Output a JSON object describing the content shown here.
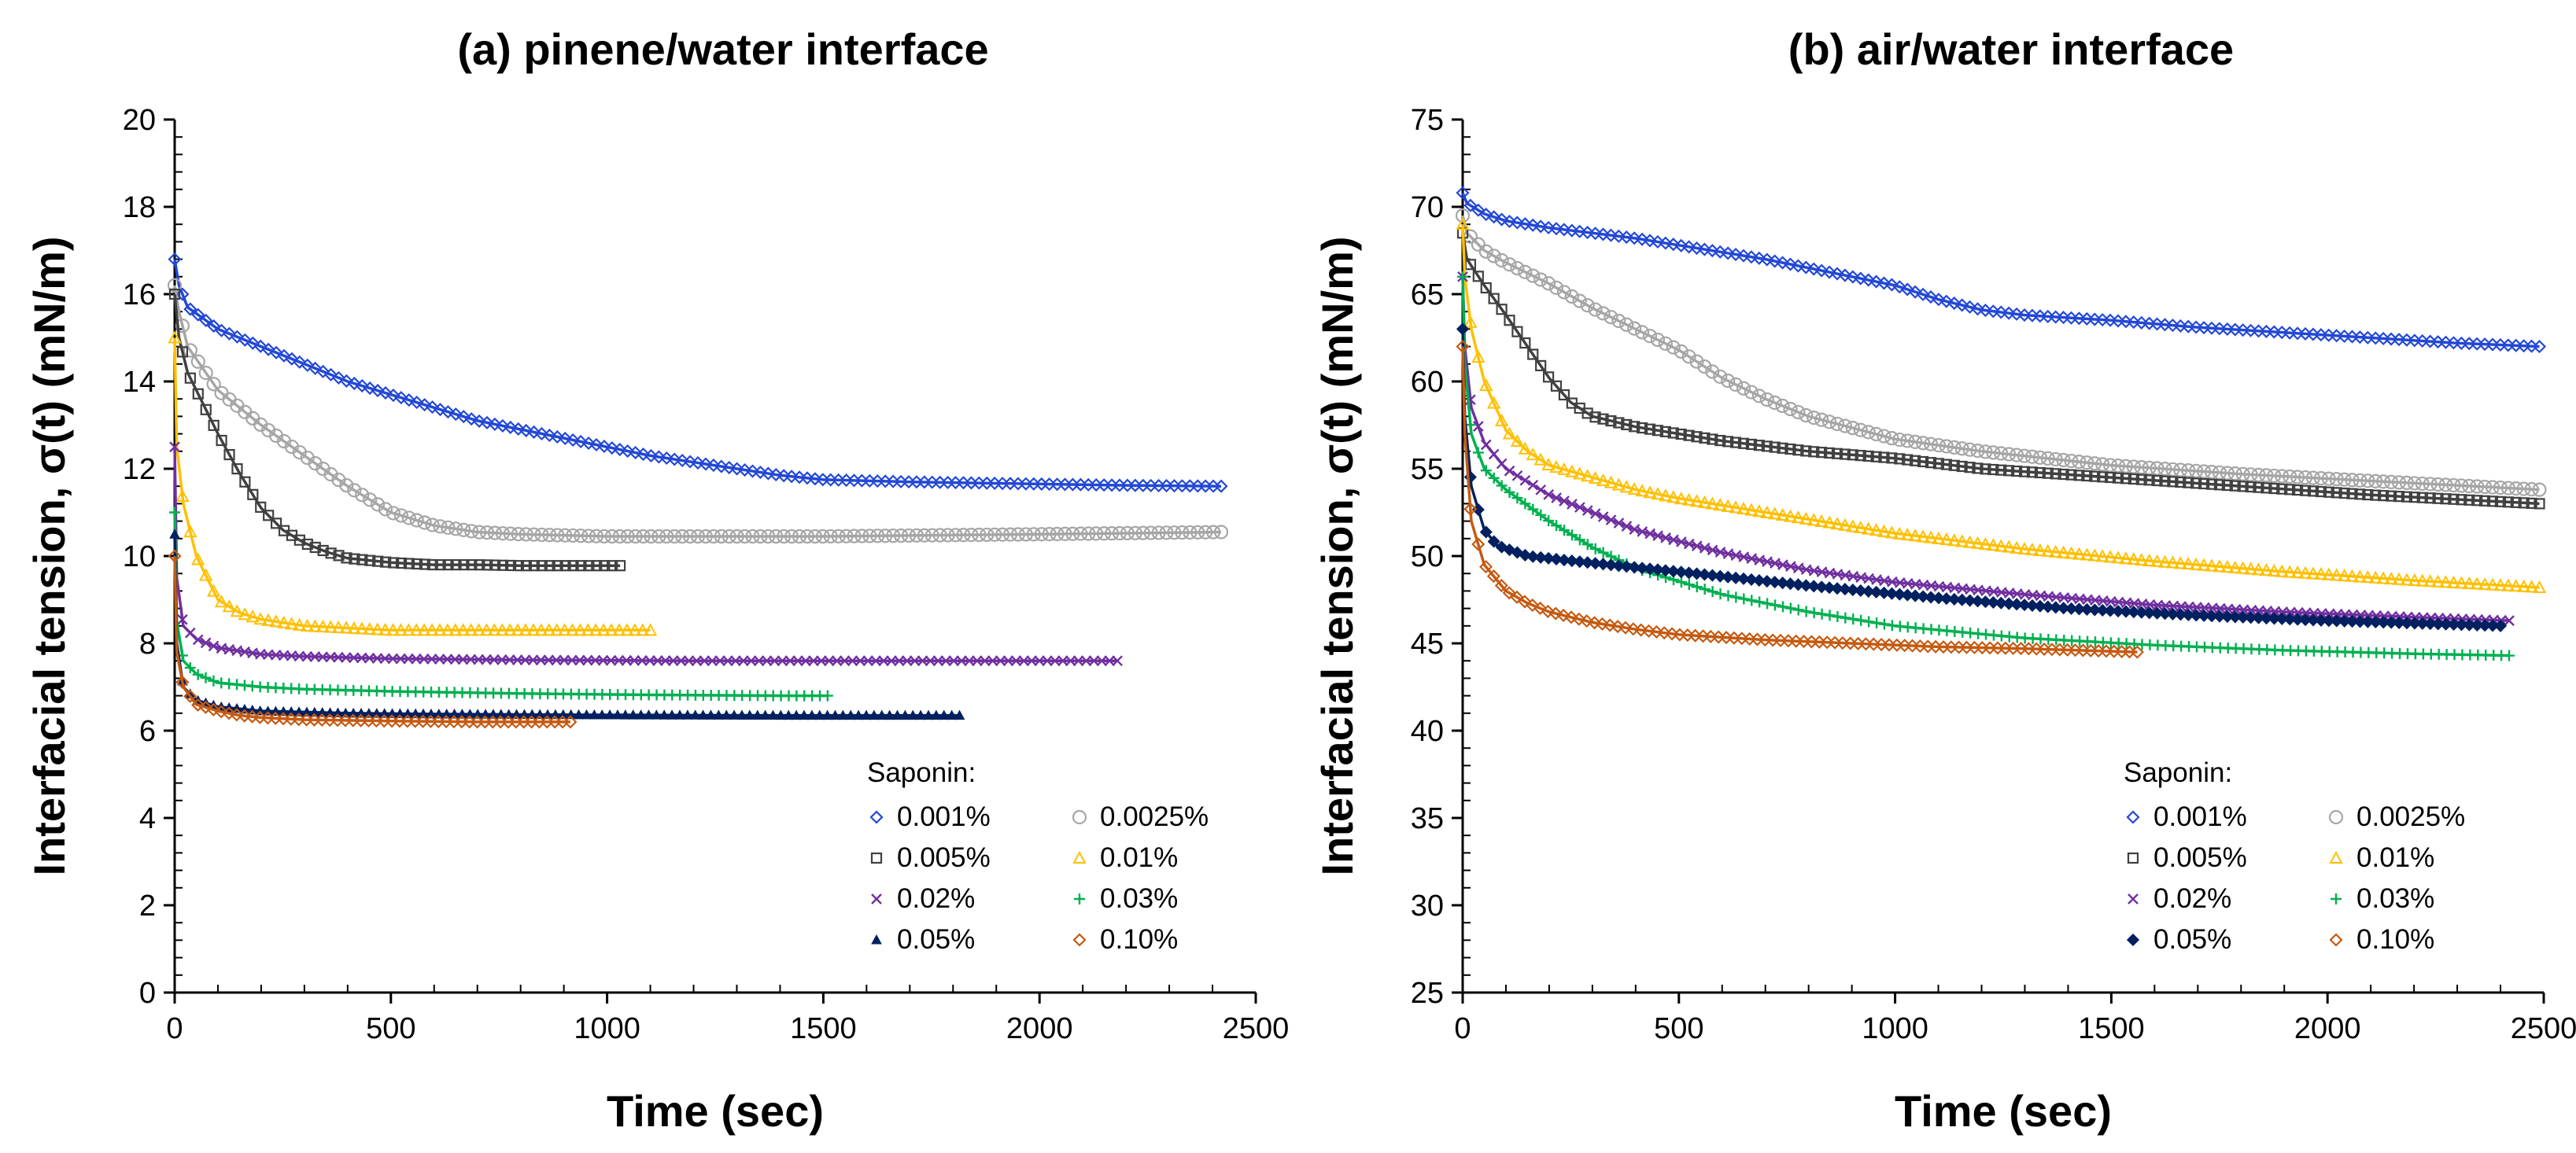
{
  "chart_data": [
    {
      "type": "line",
      "panel": "a",
      "title": "(a) pinene/water interface",
      "xlabel": "Time (sec)",
      "ylabel": "Interfacial tension, σ(t)  (mN/m)",
      "xlim": [
        0,
        2500
      ],
      "ylim": [
        0,
        20
      ],
      "xticks": [
        0,
        500,
        1000,
        1500,
        2000,
        2500
      ],
      "yticks": [
        0,
        2,
        4,
        6,
        8,
        10,
        12,
        14,
        16,
        18,
        20
      ],
      "legend_title": "Saponin:",
      "legend_placement": "bottom-right",
      "series": [
        {
          "name": "0.001%",
          "marker": "diamond-open",
          "color": "#2348d6",
          "x": [
            0,
            10,
            30,
            100,
            200,
            300,
            400,
            500,
            600,
            700,
            800,
            900,
            1000,
            1100,
            1200,
            1300,
            1400,
            1500,
            1700,
            2000,
            2200,
            2420
          ],
          "y": [
            16.8,
            16.2,
            15.7,
            15.2,
            14.8,
            14.4,
            14.0,
            13.7,
            13.4,
            13.1,
            12.9,
            12.7,
            12.5,
            12.3,
            12.15,
            12.0,
            11.85,
            11.75,
            11.7,
            11.65,
            11.62,
            11.6
          ]
        },
        {
          "name": "0.0025%",
          "marker": "circle-open",
          "color": "#a6a6a6",
          "x": [
            0,
            10,
            30,
            100,
            200,
            300,
            400,
            500,
            600,
            700,
            800,
            1000,
            1500,
            2000,
            2420
          ],
          "y": [
            16.2,
            15.6,
            14.8,
            13.8,
            13.0,
            12.3,
            11.6,
            11.0,
            10.7,
            10.55,
            10.5,
            10.45,
            10.45,
            10.5,
            10.55
          ]
        },
        {
          "name": "0.005%",
          "marker": "square-open",
          "color": "#404040",
          "x": [
            0,
            10,
            30,
            100,
            150,
            200,
            250,
            300,
            350,
            400,
            500,
            600,
            700,
            800,
            900,
            1030
          ],
          "y": [
            16.0,
            15.0,
            14.2,
            12.8,
            11.9,
            11.1,
            10.6,
            10.3,
            10.1,
            9.95,
            9.85,
            9.8,
            9.8,
            9.78,
            9.78,
            9.78
          ]
        },
        {
          "name": "0.01%",
          "marker": "triangle-open",
          "color": "#ffc000",
          "x": [
            0,
            5,
            20,
            50,
            100,
            150,
            200,
            300,
            400,
            500,
            700,
            900,
            1100
          ],
          "y": [
            15.0,
            12.5,
            11.2,
            10.0,
            9.0,
            8.7,
            8.55,
            8.4,
            8.35,
            8.3,
            8.3,
            8.3,
            8.3
          ]
        },
        {
          "name": "0.02%",
          "marker": "cross",
          "color": "#7030a0",
          "x": [
            0,
            5,
            20,
            50,
            100,
            200,
            300,
            500,
            800,
            1200,
            1600,
            2000,
            2180
          ],
          "y": [
            12.5,
            9.5,
            8.4,
            8.1,
            7.9,
            7.75,
            7.7,
            7.65,
            7.62,
            7.6,
            7.6,
            7.6,
            7.6
          ]
        },
        {
          "name": "0.03%",
          "marker": "plus",
          "color": "#00b050",
          "x": [
            0,
            5,
            20,
            50,
            100,
            200,
            300,
            500,
            800,
            1100,
            1400,
            1510
          ],
          "y": [
            11.0,
            8.5,
            7.6,
            7.3,
            7.1,
            7.0,
            6.95,
            6.9,
            6.85,
            6.82,
            6.8,
            6.8
          ]
        },
        {
          "name": "0.05%",
          "marker": "triangle-filled",
          "color": "#002060",
          "x": [
            0,
            5,
            20,
            50,
            100,
            200,
            400,
            600,
            1000,
            1400,
            1815
          ],
          "y": [
            10.5,
            8.0,
            7.0,
            6.7,
            6.55,
            6.45,
            6.4,
            6.38,
            6.36,
            6.35,
            6.35
          ]
        },
        {
          "name": "0.10%",
          "marker": "diamond-open",
          "color": "#c55a11",
          "x": [
            0,
            5,
            20,
            50,
            100,
            150,
            200,
            300,
            500,
            700,
            915
          ],
          "y": [
            10.0,
            7.8,
            7.0,
            6.6,
            6.45,
            6.35,
            6.3,
            6.25,
            6.22,
            6.2,
            6.2
          ]
        }
      ]
    },
    {
      "type": "line",
      "panel": "b",
      "title": "(b) air/water interface",
      "xlabel": "Time (sec)",
      "ylabel": "Interfacial tension, σ(t)  (mN/m)",
      "xlim": [
        0,
        2500
      ],
      "ylim": [
        25,
        75
      ],
      "xticks": [
        0,
        500,
        1000,
        1500,
        2000,
        2500
      ],
      "yticks": [
        25,
        30,
        35,
        40,
        45,
        50,
        55,
        60,
        65,
        70,
        75
      ],
      "legend_title": "Saponin:",
      "legend_placement": "bottom-right",
      "series": [
        {
          "name": "0.001%",
          "marker": "diamond-open",
          "color": "#2348d6",
          "x": [
            0,
            10,
            50,
            100,
            200,
            300,
            400,
            500,
            600,
            700,
            800,
            900,
            1000,
            1100,
            1200,
            1300,
            1500,
            1700,
            1900,
            2100,
            2300,
            2490
          ],
          "y": [
            70.8,
            70.2,
            69.6,
            69.2,
            68.8,
            68.5,
            68.2,
            67.8,
            67.4,
            67.0,
            66.5,
            66.0,
            65.5,
            64.7,
            64.1,
            63.8,
            63.5,
            63.1,
            62.8,
            62.5,
            62.2,
            62.0
          ]
        },
        {
          "name": "0.0025%",
          "marker": "circle-open",
          "color": "#a6a6a6",
          "x": [
            0,
            10,
            50,
            100,
            200,
            300,
            400,
            500,
            600,
            700,
            800,
            1000,
            1200,
            1500,
            1800,
            2100,
            2490
          ],
          "y": [
            69.5,
            68.5,
            67.5,
            66.8,
            65.6,
            64.2,
            63.0,
            61.8,
            60.2,
            59.0,
            58.0,
            56.7,
            56.0,
            55.2,
            54.7,
            54.3,
            53.8
          ]
        },
        {
          "name": "0.005%",
          "marker": "square-open",
          "color": "#404040",
          "x": [
            0,
            10,
            50,
            100,
            150,
            200,
            250,
            300,
            400,
            500,
            600,
            800,
            1000,
            1200,
            1500,
            1800,
            2100,
            2490
          ],
          "y": [
            68.5,
            67.0,
            65.5,
            63.8,
            62.0,
            60.2,
            58.8,
            58.0,
            57.4,
            57.0,
            56.6,
            56.0,
            55.6,
            55.0,
            54.5,
            54.0,
            53.5,
            53.0
          ]
        },
        {
          "name": "0.01%",
          "marker": "triangle-open",
          "color": "#ffc000",
          "x": [
            0,
            5,
            20,
            50,
            100,
            150,
            200,
            300,
            400,
            500,
            700,
            1000,
            1300,
            1600,
            1900,
            2200,
            2490
          ],
          "y": [
            69.0,
            66.0,
            63.0,
            60.0,
            57.2,
            56.0,
            55.2,
            54.5,
            53.8,
            53.3,
            52.5,
            51.3,
            50.4,
            49.7,
            49.1,
            48.6,
            48.2
          ]
        },
        {
          "name": "0.02%",
          "marker": "cross",
          "color": "#7030a0",
          "x": [
            0,
            5,
            20,
            50,
            100,
            200,
            300,
            400,
            600,
            800,
            1000,
            1300,
            1600,
            1900,
            2200,
            2420
          ],
          "y": [
            66.0,
            62.0,
            58.5,
            56.5,
            55.0,
            53.5,
            52.5,
            51.5,
            50.2,
            49.2,
            48.5,
            47.8,
            47.2,
            46.8,
            46.5,
            46.3
          ]
        },
        {
          "name": "0.03%",
          "marker": "plus",
          "color": "#00b050",
          "x": [
            0,
            5,
            20,
            50,
            100,
            200,
            300,
            400,
            600,
            800,
            1000,
            1300,
            1600,
            1900,
            2200,
            2420
          ],
          "y": [
            66.0,
            61.0,
            57.0,
            55.0,
            53.8,
            52.0,
            50.5,
            49.3,
            47.8,
            46.8,
            46.0,
            45.3,
            44.9,
            44.6,
            44.4,
            44.3
          ]
        },
        {
          "name": "0.05%",
          "marker": "diamond-filled",
          "color": "#002060",
          "x": [
            0,
            5,
            20,
            50,
            80,
            150,
            300,
            500,
            800,
            1100,
            1400,
            1700,
            2000,
            2400
          ],
          "y": [
            63.0,
            58.0,
            54.0,
            51.5,
            50.6,
            50.0,
            49.6,
            49.1,
            48.3,
            47.6,
            47.0,
            46.6,
            46.3,
            46.0
          ]
        },
        {
          "name": "0.10%",
          "marker": "diamond-open",
          "color": "#c55a11",
          "x": [
            0,
            5,
            20,
            50,
            100,
            150,
            200,
            300,
            400,
            500,
            700,
            900,
            1100,
            1300,
            1560
          ],
          "y": [
            62.0,
            57.0,
            52.0,
            49.5,
            48.0,
            47.3,
            46.8,
            46.2,
            45.8,
            45.5,
            45.2,
            45.0,
            44.8,
            44.7,
            44.5
          ]
        }
      ]
    }
  ]
}
